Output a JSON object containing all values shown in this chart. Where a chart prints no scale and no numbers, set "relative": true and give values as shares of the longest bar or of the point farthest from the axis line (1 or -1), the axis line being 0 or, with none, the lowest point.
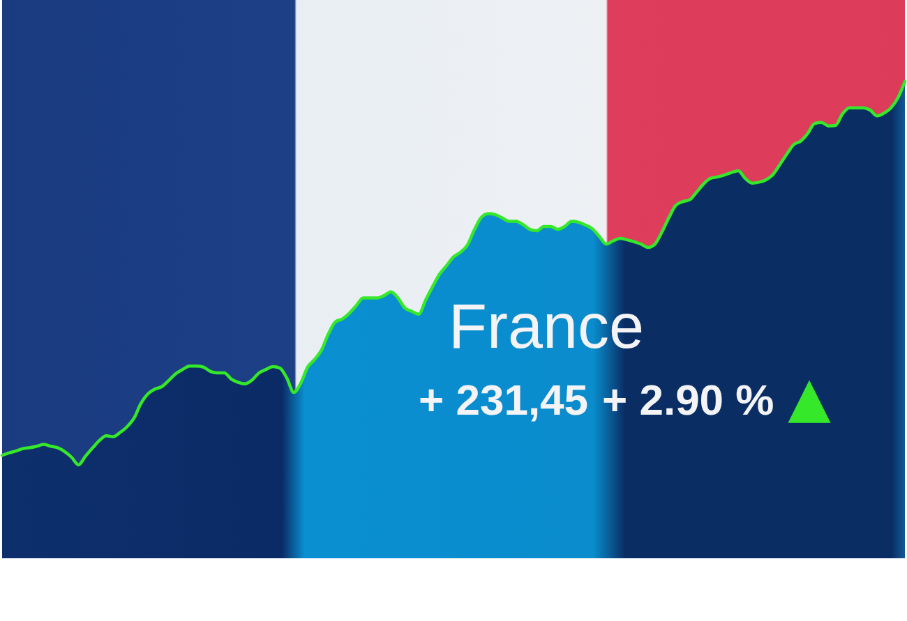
{
  "chart_data": {
    "type": "area",
    "relative": true,
    "tick_labels": false,
    "title": "France",
    "annotations": [
      "+ 231,45",
      "+ 2.90 %",
      "▲"
    ],
    "categories": [
      null,
      null,
      null,
      null,
      null,
      null,
      null,
      null,
      null,
      null,
      null,
      null,
      null,
      null,
      null,
      null,
      null,
      null,
      null,
      null,
      null,
      null,
      null,
      null,
      null,
      null,
      null,
      null,
      null,
      null,
      null,
      null,
      null,
      null,
      null,
      null,
      null,
      null,
      null,
      null,
      null,
      null,
      null,
      null,
      null,
      null,
      null,
      null,
      null,
      null,
      null,
      null,
      null,
      null,
      null,
      null,
      null,
      null,
      null,
      null,
      null,
      null,
      null,
      null,
      null,
      null,
      null,
      null,
      null,
      null,
      null,
      null,
      null,
      null,
      null,
      null,
      null,
      null,
      null,
      null,
      null,
      null,
      null,
      null,
      null,
      null,
      null,
      null,
      null,
      null,
      null,
      null,
      null,
      null,
      null,
      null,
      null,
      null,
      null,
      null,
      null,
      null,
      null,
      null,
      null,
      null,
      null,
      null,
      null,
      null,
      null,
      null,
      null,
      null,
      null,
      null,
      null,
      null,
      null,
      null,
      null,
      null,
      null,
      null,
      null,
      null,
      null,
      null,
      null,
      null,
      null
    ],
    "series": [
      {
        "color": "#35e82a",
        "values": [
          0.216,
          0.221,
          0.225,
          0.23,
          0.232,
          0.235,
          0.239,
          0.235,
          0.232,
          0.224,
          0.212,
          0.196,
          0.214,
          0.231,
          0.247,
          0.257,
          0.255,
          0.264,
          0.276,
          0.294,
          0.325,
          0.345,
          0.355,
          0.36,
          0.373,
          0.387,
          0.396,
          0.403,
          0.403,
          0.401,
          0.392,
          0.389,
          0.389,
          0.376,
          0.369,
          0.366,
          0.374,
          0.389,
          0.396,
          0.402,
          0.399,
          0.378,
          0.348,
          0.367,
          0.401,
          0.417,
          0.437,
          0.471,
          0.496,
          0.502,
          0.514,
          0.53,
          0.546,
          0.546,
          0.546,
          0.551,
          0.559,
          0.546,
          0.525,
          0.518,
          0.512,
          0.542,
          0.57,
          0.596,
          0.614,
          0.632,
          0.642,
          0.657,
          0.689,
          0.715,
          0.723,
          0.721,
          0.714,
          0.707,
          0.707,
          0.7,
          0.69,
          0.687,
          0.696,
          0.696,
          0.69,
          0.696,
          0.707,
          0.705,
          0.699,
          0.691,
          0.675,
          0.659,
          0.666,
          0.671,
          0.668,
          0.664,
          0.659,
          0.652,
          0.659,
          0.684,
          0.714,
          0.74,
          0.748,
          0.752,
          0.768,
          0.785,
          0.797,
          0.8,
          0.804,
          0.809,
          0.813,
          0.797,
          0.787,
          0.789,
          0.794,
          0.805,
          0.826,
          0.848,
          0.868,
          0.875,
          0.891,
          0.912,
          0.914,
          0.907,
          0.908,
          0.932,
          0.945,
          0.945,
          0.945,
          0.94,
          0.928,
          0.934,
          0.945,
          0.966,
          1
        ]
      }
    ]
  }
}
